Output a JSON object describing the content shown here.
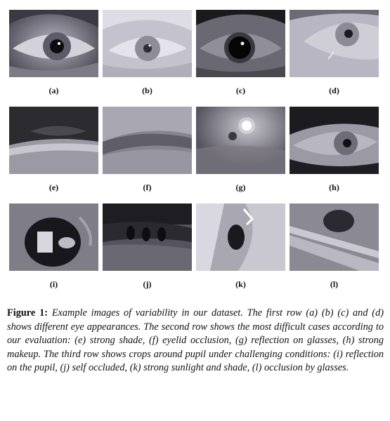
{
  "panels": [
    {
      "id": "a",
      "label": "(a)"
    },
    {
      "id": "b",
      "label": "(b)"
    },
    {
      "id": "c",
      "label": "(c)"
    },
    {
      "id": "d",
      "label": "(d)"
    },
    {
      "id": "e",
      "label": "(e)"
    },
    {
      "id": "f",
      "label": "(f)"
    },
    {
      "id": "g",
      "label": "(g)"
    },
    {
      "id": "h",
      "label": "(h)"
    },
    {
      "id": "i",
      "label": "(i)"
    },
    {
      "id": "j",
      "label": "(j)"
    },
    {
      "id": "k",
      "label": "(k)"
    },
    {
      "id": "l",
      "label": "(l)"
    }
  ],
  "caption": {
    "figure_label": "Figure 1:",
    "text": "Example images of variability in our dataset. The first row (a) (b) (c) and (d) shows different eye appearances. The second row shows the most difficult cases according to our evaluation: (e) strong shade, (f) eyelid occlusion, (g) reflection on glasses, (h) strong makeup. The third row shows crops around pupil under challenging conditions: (i) reflection on the pupil, (j) self occluded, (k) strong sunlight and shade, (l) occlusion by glasses."
  }
}
